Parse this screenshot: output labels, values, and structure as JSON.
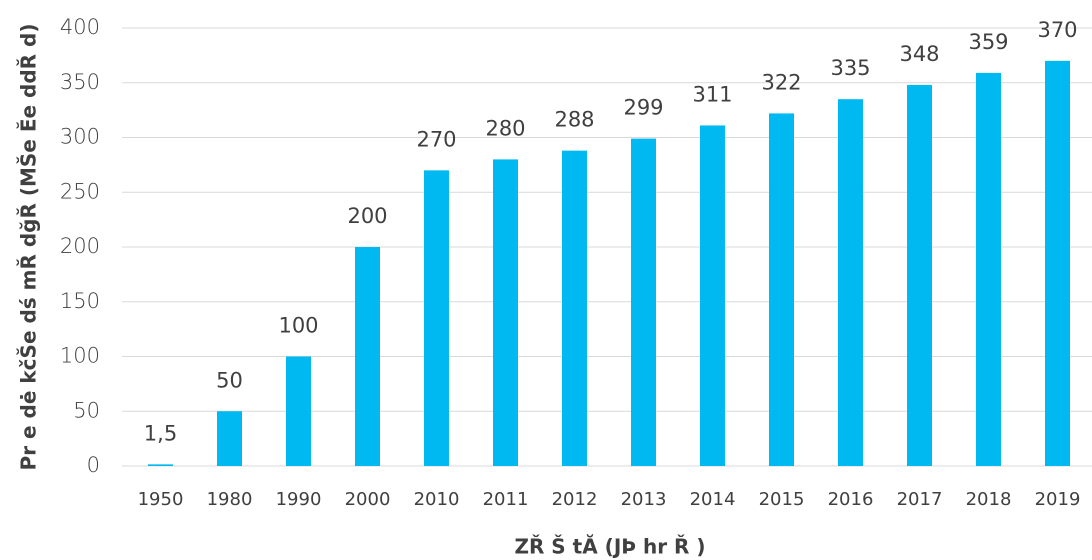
{
  "chart_data": {
    "type": "bar",
    "y_label": "Pr e dė kčŠe dś mŘ dğŘ (MŠe Ĕe ddŘ d)",
    "x_label": "ZŘ Š tĂ (JÞ hr Ř )",
    "categories": [
      "1950",
      "1980",
      "1990",
      "2000",
      "2010",
      "2011",
      "2012",
      "2013",
      "2014",
      "2015",
      "2016",
      "2017",
      "2018",
      "2019"
    ],
    "values": [
      1.5,
      50,
      100,
      200,
      270,
      280,
      288,
      299,
      311,
      322,
      335,
      348,
      359,
      370
    ],
    "value_labels": [
      "1,5",
      "50",
      "100",
      "200",
      "270",
      "280",
      "288",
      "299",
      "311",
      "322",
      "335",
      "348",
      "359",
      "370"
    ],
    "color": "#00b9f1",
    "ylim": [
      0,
      400
    ],
    "yticks": [
      0,
      50,
      100,
      150,
      200,
      250,
      300,
      350,
      400
    ],
    "grid": true
  }
}
